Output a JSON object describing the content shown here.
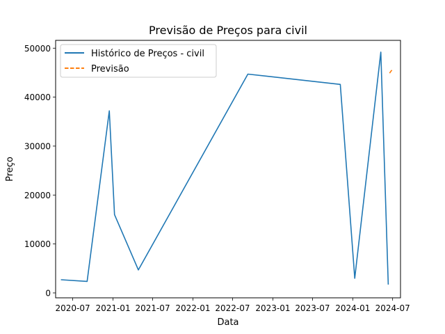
{
  "chart_data": {
    "type": "line",
    "title": "Previsão de Preços para civil",
    "xlabel": "Data",
    "ylabel": "Preço",
    "grid": false,
    "legend_position": "upper-left",
    "x_axis": {
      "type": "date",
      "min": "2020-04-14",
      "max": "2024-08-06",
      "ticks": [
        "2020-07-01",
        "2021-01-01",
        "2021-07-01",
        "2022-01-01",
        "2022-07-01",
        "2023-01-01",
        "2023-07-01",
        "2024-01-01",
        "2024-07-01"
      ],
      "tick_labels": [
        "2020-07",
        "2021-01",
        "2021-07",
        "2022-01",
        "2022-07",
        "2023-01",
        "2023-07",
        "2024-01",
        "2024-07"
      ]
    },
    "y_axis": {
      "min": -1000,
      "max": 51600,
      "ticks": [
        0,
        10000,
        20000,
        30000,
        40000,
        50000
      ],
      "tick_labels": [
        "0",
        "10000",
        "20000",
        "30000",
        "40000",
        "50000"
      ]
    },
    "series": [
      {
        "name": "Histórico de Preços - civil",
        "color": "#1f77b4",
        "style": "solid",
        "points": [
          {
            "x": "2020-05-08",
            "y": 2700
          },
          {
            "x": "2020-09-05",
            "y": 2350
          },
          {
            "x": "2020-12-15",
            "y": 37200
          },
          {
            "x": "2021-01-08",
            "y": 16000
          },
          {
            "x": "2021-04-27",
            "y": 4700
          },
          {
            "x": "2022-09-09",
            "y": 44700
          },
          {
            "x": "2023-11-05",
            "y": 42600
          },
          {
            "x": "2024-01-10",
            "y": 3000
          },
          {
            "x": "2024-05-08",
            "y": 49200
          },
          {
            "x": "2024-06-11",
            "y": 1700
          }
        ]
      },
      {
        "name": "Previsão",
        "color": "#ff7f0e",
        "style": "dashed",
        "points": [
          {
            "x": "2024-06-17",
            "y": 44900
          },
          {
            "x": "2024-06-25",
            "y": 45400
          },
          {
            "x": "2024-07-03",
            "y": 45700
          }
        ]
      }
    ]
  }
}
